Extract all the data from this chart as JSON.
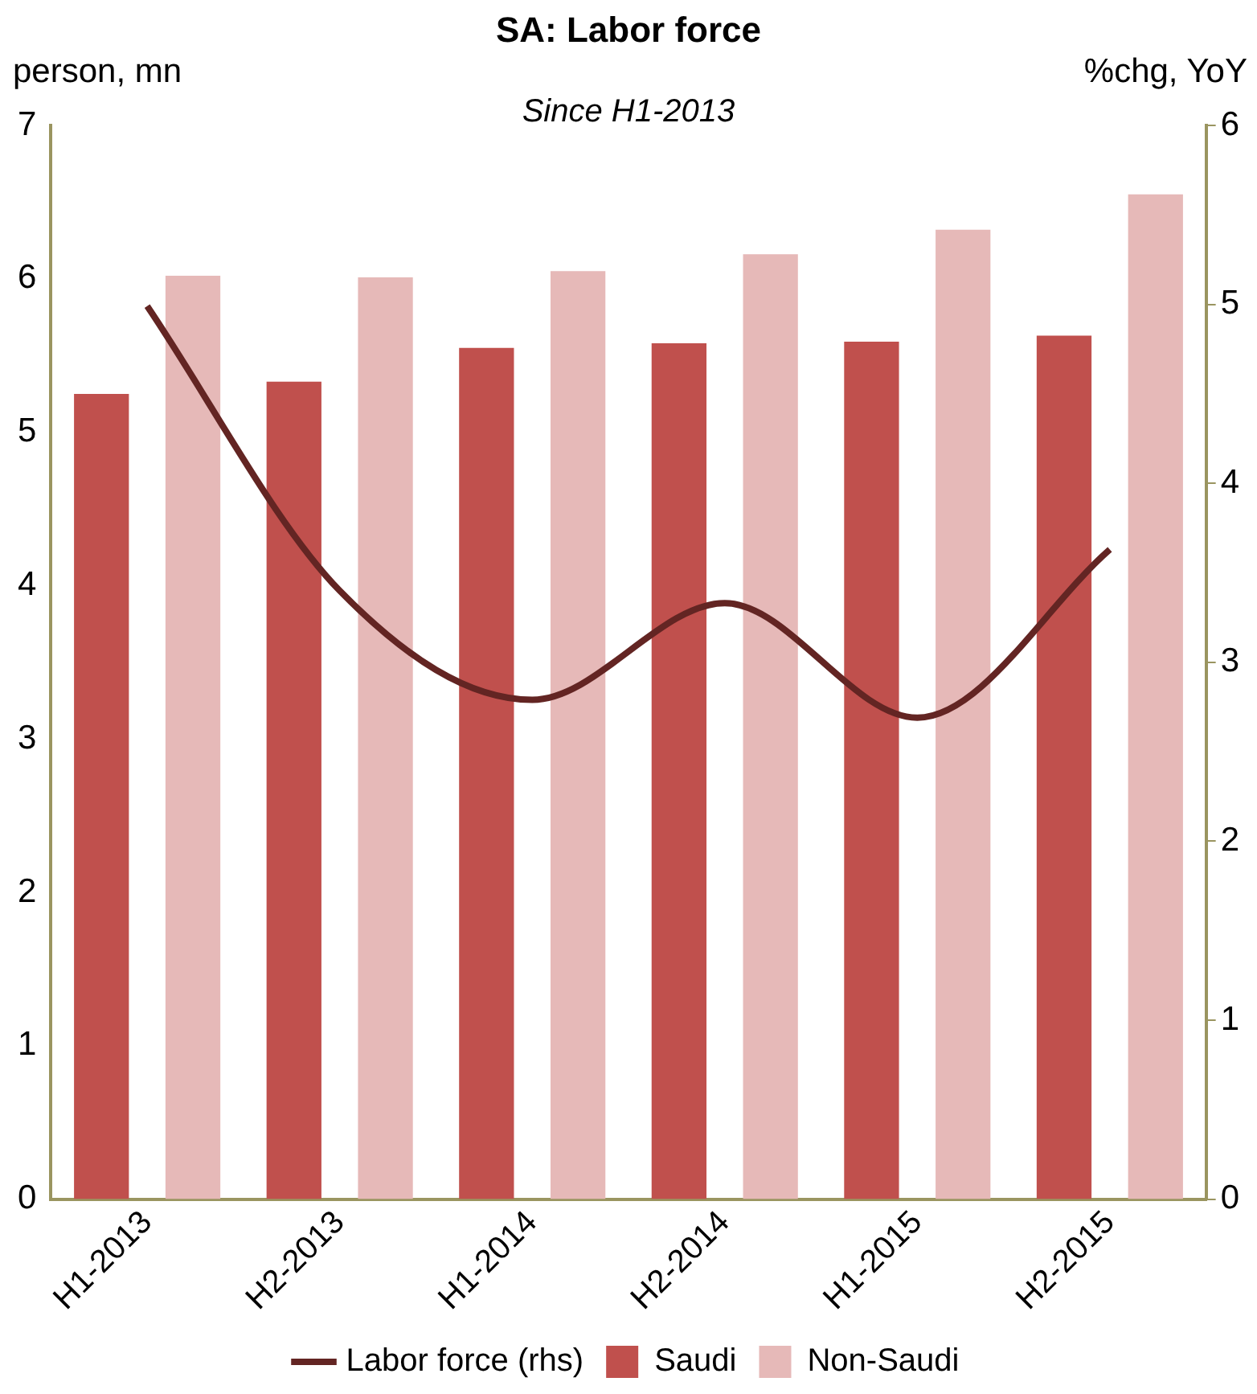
{
  "chart_data": {
    "type": "bar",
    "title": "SA: Labor force",
    "subtitle": "Since H1-2013",
    "ylabel": "person, mn",
    "y2label": "%chg, YoY",
    "categories": [
      "H1-2013",
      "H2-2013",
      "H1-2014",
      "H2-2014",
      "H1-2015",
      "H2-2015"
    ],
    "series": [
      {
        "name": "Saudi",
        "color": "#c0504d",
        "values": [
          5.25,
          5.33,
          5.55,
          5.58,
          5.59,
          5.63
        ]
      },
      {
        "name": "Non-Saudi",
        "color": "#e6b9b8",
        "values": [
          6.02,
          6.01,
          6.05,
          6.16,
          6.32,
          6.55
        ]
      },
      {
        "name": "Labor force (rhs)",
        "type": "line",
        "axis": "y2",
        "color": "#632523",
        "values": [
          4.99,
          3.4,
          2.79,
          3.33,
          2.69,
          3.63
        ]
      }
    ],
    "ylim": [
      0,
      7
    ],
    "yticks": [
      0,
      1,
      2,
      3,
      4,
      5,
      6,
      7
    ],
    "y2lim": [
      0,
      6
    ],
    "y2ticks": [
      0,
      1,
      2,
      3,
      4,
      5,
      6
    ],
    "grid": false,
    "legend": "bottom",
    "marker": "none"
  }
}
